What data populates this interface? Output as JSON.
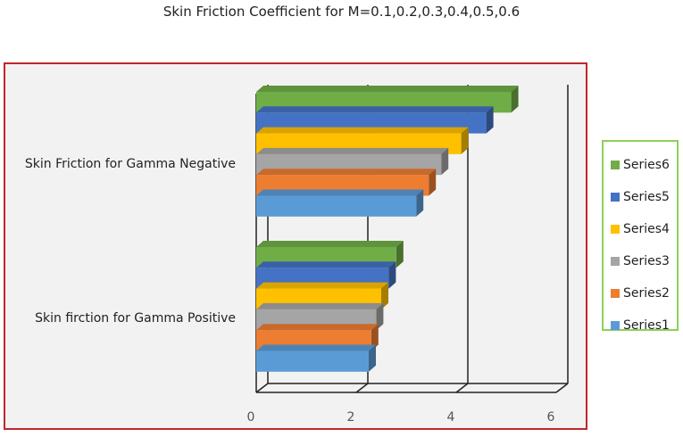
{
  "title": "Skin Friction Coefficient for M=0.1,0.2,0.3,0.4,0.5,0.6",
  "chart_data": {
    "type": "bar",
    "orientation": "horizontal",
    "style": "3d-clustered",
    "categories": [
      "Skin Friction for Gamma Negative",
      "Skin firction for Gamma Positive"
    ],
    "series": [
      {
        "name": "Series1",
        "values": [
          3.2,
          2.25
        ],
        "color": "#5b9bd5"
      },
      {
        "name": "Series2",
        "values": [
          3.45,
          2.3
        ],
        "color": "#ed7d31"
      },
      {
        "name": "Series3",
        "values": [
          3.7,
          2.4
        ],
        "color": "#a5a5a5"
      },
      {
        "name": "Series4",
        "values": [
          4.1,
          2.5
        ],
        "color": "#ffc000"
      },
      {
        "name": "Series5",
        "values": [
          4.6,
          2.65
        ],
        "color": "#4472c4"
      },
      {
        "name": "Series6",
        "values": [
          5.1,
          2.8
        ],
        "color": "#70ad47"
      }
    ],
    "xlim": [
      0,
      6
    ],
    "xticks": [
      "0",
      "2",
      "4",
      "6"
    ],
    "grid": true,
    "legend_position": "right",
    "legend_order": [
      "Series6",
      "Series5",
      "Series4",
      "Series3",
      "Series2",
      "Series1"
    ]
  }
}
